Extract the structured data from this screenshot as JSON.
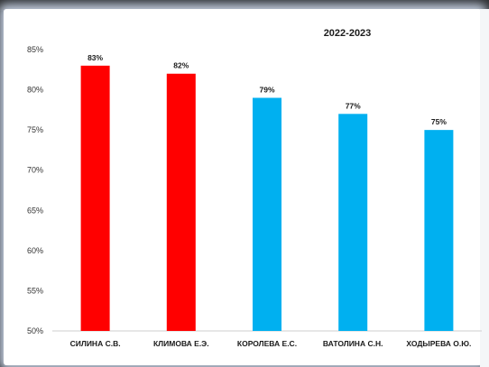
{
  "chart_data": {
    "type": "bar",
    "title": "2022-2023",
    "categories": [
      "СИЛИНА С.В.",
      "КЛИМОВА Е.Э.",
      "КОРОЛЕВА Е.С.",
      "ВАТОЛИНА С.Н.",
      "ХОДЫРЕВА О.Ю."
    ],
    "values": [
      83,
      82,
      79,
      77,
      75
    ],
    "data_labels": [
      "83%",
      "82%",
      "79%",
      "77%",
      "75%"
    ],
    "bar_colors": [
      "#ff0000",
      "#ff0000",
      "#00b0f0",
      "#00b0f0",
      "#00b0f0"
    ],
    "ylim": [
      50,
      85
    ],
    "y_ticks": [
      50,
      55,
      60,
      65,
      70,
      75,
      80,
      85
    ],
    "y_tick_labels": [
      "50%",
      "55%",
      "60%",
      "65%",
      "70%",
      "75%",
      "80%",
      "85%"
    ],
    "grid": false,
    "legend": "none",
    "xlabel": "",
    "ylabel": ""
  }
}
